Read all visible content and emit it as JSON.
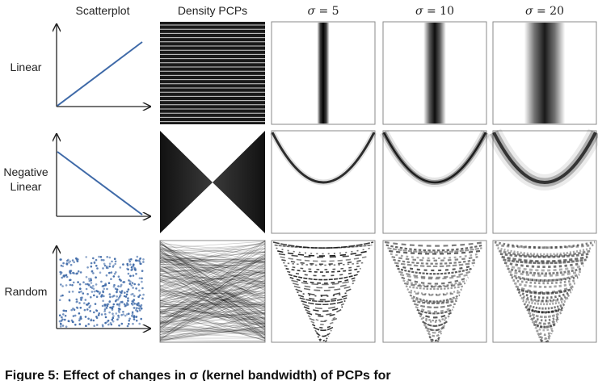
{
  "columns": {
    "scatterplot": "Scatterplot",
    "density_pcps": "Density PCPs",
    "sigma_symbol": "σ",
    "sigma_values": [
      "= 5",
      "= 10",
      "= 20"
    ]
  },
  "rows": {
    "linear": "Linear",
    "negative_1": "Negative",
    "negative_2": "Linear",
    "random": "Random"
  },
  "caption": "Figure 5: Effect of changes in σ (kernel bandwidth) of PCPs for",
  "colors": {
    "scatter_blue": "#3f6aa8",
    "ink": "#111111",
    "frame": "#8a8a8a"
  }
}
